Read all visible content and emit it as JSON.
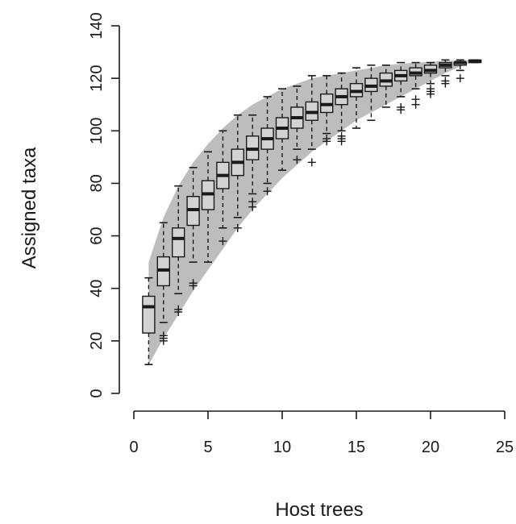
{
  "chart_data": {
    "type": "boxplot",
    "title": "",
    "xlabel": "Host trees",
    "ylabel": "Assigned taxa",
    "xlim": [
      0,
      25
    ],
    "ylim": [
      0,
      140
    ],
    "x_ticks": [
      "0",
      "5",
      "10",
      "15",
      "20",
      "25"
    ],
    "y_ticks": [
      "0",
      "20",
      "40",
      "60",
      "80",
      "100",
      "120",
      "140"
    ],
    "band": {
      "upper": [
        [
          1,
          50
        ],
        [
          2,
          67
        ],
        [
          3,
          79
        ],
        [
          4,
          88
        ],
        [
          5,
          95
        ],
        [
          6,
          101
        ],
        [
          7,
          106
        ],
        [
          8,
          110
        ],
        [
          9,
          113
        ],
        [
          10,
          116
        ],
        [
          11,
          118
        ],
        [
          12,
          120
        ],
        [
          13,
          121
        ],
        [
          14,
          122
        ],
        [
          15,
          123
        ],
        [
          16,
          124
        ],
        [
          17,
          125
        ],
        [
          18,
          125.5
        ],
        [
          19,
          126
        ],
        [
          20,
          126.3
        ],
        [
          21,
          126.6
        ],
        [
          22,
          126.8
        ],
        [
          23,
          127
        ]
      ],
      "lower": [
        [
          23,
          126.5
        ],
        [
          22,
          124.5
        ],
        [
          21,
          122
        ],
        [
          20,
          119
        ],
        [
          19,
          116
        ],
        [
          18,
          113
        ],
        [
          17,
          110
        ],
        [
          16,
          107
        ],
        [
          15,
          104
        ],
        [
          14,
          100
        ],
        [
          13,
          96
        ],
        [
          12,
          92
        ],
        [
          11,
          87
        ],
        [
          10,
          82
        ],
        [
          9,
          76
        ],
        [
          8,
          70
        ],
        [
          7,
          63
        ],
        [
          6,
          55
        ],
        [
          5,
          47
        ],
        [
          4,
          39
        ],
        [
          3,
          30
        ],
        [
          2,
          21
        ],
        [
          1,
          11
        ]
      ]
    },
    "boxes": [
      {
        "x": 1,
        "whisker_low": 11,
        "q1": 23,
        "median": 33,
        "q3": 37,
        "whisker_high": 44,
        "outliers": []
      },
      {
        "x": 2,
        "whisker_low": 27,
        "q1": 41,
        "median": 47,
        "q3": 52,
        "whisker_high": 65,
        "outliers": [
          20,
          21,
          22
        ]
      },
      {
        "x": 3,
        "whisker_low": 38,
        "q1": 52,
        "median": 59,
        "q3": 63,
        "whisker_high": 79,
        "outliers": [
          31,
          32
        ]
      },
      {
        "x": 4,
        "whisker_low": 50,
        "q1": 64,
        "median": 70,
        "q3": 75,
        "whisker_high": 86,
        "outliers": [
          41,
          42
        ]
      },
      {
        "x": 5,
        "whisker_low": 50,
        "q1": 70,
        "median": 76,
        "q3": 81,
        "whisker_high": 92,
        "outliers": []
      },
      {
        "x": 6,
        "whisker_low": 63,
        "q1": 78,
        "median": 83,
        "q3": 88,
        "whisker_high": 100,
        "outliers": [
          58
        ]
      },
      {
        "x": 7,
        "whisker_low": 67,
        "q1": 83,
        "median": 88,
        "q3": 93,
        "whisker_high": 106,
        "outliers": [
          63
        ]
      },
      {
        "x": 8,
        "whisker_low": 76,
        "q1": 89,
        "median": 93,
        "q3": 98,
        "whisker_high": 106,
        "outliers": [
          71,
          73
        ]
      },
      {
        "x": 9,
        "whisker_low": 80,
        "q1": 93,
        "median": 97,
        "q3": 101,
        "whisker_high": 113,
        "outliers": [
          77
        ]
      },
      {
        "x": 10,
        "whisker_low": 85,
        "q1": 97,
        "median": 101,
        "q3": 105,
        "whisker_high": 116,
        "outliers": []
      },
      {
        "x": 11,
        "whisker_low": 93,
        "q1": 101,
        "median": 105,
        "q3": 109,
        "whisker_high": 117,
        "outliers": [
          89
        ]
      },
      {
        "x": 12,
        "whisker_low": 93,
        "q1": 104,
        "median": 107,
        "q3": 111,
        "whisker_high": 121,
        "outliers": [
          88
        ]
      },
      {
        "x": 13,
        "whisker_low": 99,
        "q1": 107,
        "median": 110,
        "q3": 114,
        "whisker_high": 121,
        "outliers": [
          96,
          97
        ]
      },
      {
        "x": 14,
        "whisker_low": 100,
        "q1": 110,
        "median": 113,
        "q3": 116,
        "whisker_high": 122,
        "outliers": [
          96,
          97,
          98
        ]
      },
      {
        "x": 15,
        "whisker_low": 101,
        "q1": 113,
        "median": 115,
        "q3": 118,
        "whisker_high": 124,
        "outliers": []
      },
      {
        "x": 16,
        "whisker_low": 104,
        "q1": 115,
        "median": 117,
        "q3": 120,
        "whisker_high": 125,
        "outliers": []
      },
      {
        "x": 17,
        "whisker_low": 109,
        "q1": 117,
        "median": 119,
        "q3": 122,
        "whisker_high": 125,
        "outliers": []
      },
      {
        "x": 18,
        "whisker_low": 113,
        "q1": 119,
        "median": 121,
        "q3": 123,
        "whisker_high": 126,
        "outliers": [
          108,
          109
        ]
      },
      {
        "x": 19,
        "whisker_low": 116,
        "q1": 121,
        "median": 122,
        "q3": 124,
        "whisker_high": 126,
        "outliers": [
          110,
          112
        ]
      },
      {
        "x": 20,
        "whisker_low": 118,
        "q1": 122,
        "median": 123,
        "q3": 125,
        "whisker_high": 126,
        "outliers": [
          114,
          115,
          116
        ]
      },
      {
        "x": 21,
        "whisker_low": 121,
        "q1": 124,
        "median": 125,
        "q3": 126,
        "whisker_high": 127,
        "outliers": [
          118,
          119
        ]
      },
      {
        "x": 22,
        "whisker_low": 123,
        "q1": 125,
        "median": 126,
        "q3": 126,
        "whisker_high": 127,
        "outliers": [
          120
        ]
      },
      {
        "x": 23,
        "whisker_low": 126,
        "q1": 126,
        "median": 126.5,
        "q3": 127,
        "whisker_high": 127,
        "outliers": []
      }
    ],
    "grid": false,
    "colors": {
      "band": "#bdbdbd",
      "box_fill": "#d3d3d3",
      "stroke": "#1a1a1a"
    }
  }
}
